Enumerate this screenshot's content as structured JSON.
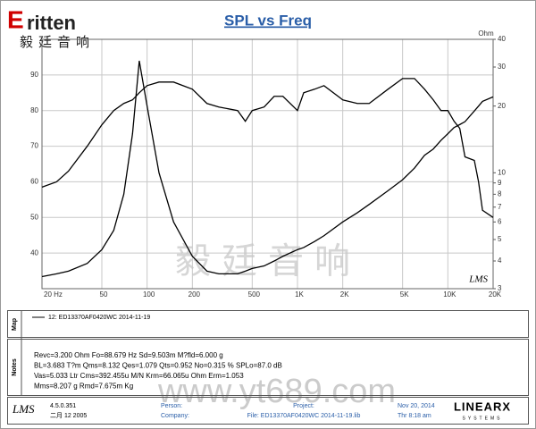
{
  "chart_data": {
    "type": "line",
    "title": "SPL vs Freq",
    "y2label": "Ohm",
    "xscale": "log",
    "y2scale": "log",
    "grid": true,
    "brand": "LMS",
    "x": [
      20,
      25,
      30,
      40,
      50,
      60,
      70,
      80,
      88.7,
      100,
      120,
      150,
      200,
      250,
      300,
      400,
      450,
      500,
      600,
      700,
      800,
      1000,
      1100,
      1300,
      1500,
      2000,
      2500,
      3000,
      4000,
      5000,
      6000,
      7000,
      8000,
      9000,
      10000,
      11000,
      12000,
      13000,
      15000,
      16000,
      17000,
      20000
    ],
    "series": [
      {
        "name": "12: ED13370AF0420WC  2014-11-19",
        "color": "#000000",
        "values": [
          58.5,
          60,
          63,
          70,
          76,
          80,
          82,
          83,
          85,
          87,
          88,
          88,
          86,
          82,
          81,
          80,
          77,
          80,
          81,
          84,
          84,
          80,
          85,
          86,
          87,
          83,
          82,
          82,
          86,
          89,
          89,
          86,
          83,
          80,
          80,
          77,
          75,
          67,
          66,
          60,
          52,
          50
        ]
      },
      {
        "name": "12: ED13370AF0420WC  2014-11-19",
        "color": "#000000",
        "axis": "y2",
        "values": [
          3.4,
          3.5,
          3.6,
          3.9,
          4.5,
          5.5,
          8,
          15,
          32,
          20,
          10,
          6,
          4.2,
          3.6,
          3.5,
          3.5,
          3.6,
          3.7,
          3.8,
          4.0,
          4.2,
          4.5,
          4.6,
          4.9,
          5.2,
          6,
          6.6,
          7.2,
          8.3,
          9.3,
          10.5,
          12,
          12.8,
          14,
          15,
          16,
          16.5,
          17,
          19,
          20,
          21,
          22
        ]
      }
    ],
    "xlim": [
      20,
      20000
    ],
    "xticks": [
      {
        "value": 20,
        "label": "20 Hz"
      },
      50,
      100,
      200,
      500,
      {
        "value": 1000,
        "label": "1K"
      },
      {
        "value": 2000,
        "label": "2K"
      },
      {
        "value": 5000,
        "label": "5K"
      },
      {
        "value": 10000,
        "label": "10K"
      },
      {
        "value": 20000,
        "label": "20K"
      }
    ],
    "ylim": [
      30,
      100
    ],
    "yticks": [
      40,
      50,
      60,
      70,
      80,
      90
    ],
    "y2lim": [
      3,
      40
    ],
    "y2ticks": [
      3,
      4,
      5,
      6,
      7,
      8,
      9,
      10,
      20,
      30,
      40
    ]
  },
  "header": {
    "logo_mark": "E",
    "logo": "ritten",
    "logo_cn": "毅廷音响"
  },
  "panels": {
    "map": "Map",
    "notes": "Notes"
  },
  "notes": [
    "Revc=3.200 Ohm  Fo=88.679 Hz  Sd=9.503m M?fld=6.000 g",
    "BL=3.683 T?m  Qms=8.132  Qes=1.079  Qts=0.952  No=0.315 %  SPLo=87.0 dB",
    "Vas=5.033 Ltr  Cms=392.455u M/N  Krm=66.065u Ohm  Erm=1.053",
    "Mms=8.207 g  Rmd=7.675m Kg"
  ],
  "footer": {
    "version": "4.5.0.351",
    "date": "二月 12 2005",
    "person": "Person:",
    "company": "Company:",
    "project": "Project:",
    "file": "File: ED13370AF0420WC  2014-11-19.lib",
    "today": "Nov 20, 2014",
    "time": "Thr  8:18 am",
    "maker": "LINEARX",
    "maker_sub": "SYSTEMS",
    "brand": "LMS"
  },
  "watermark": {
    "cn": "毅廷音响",
    "url": "www.yt689.com"
  }
}
